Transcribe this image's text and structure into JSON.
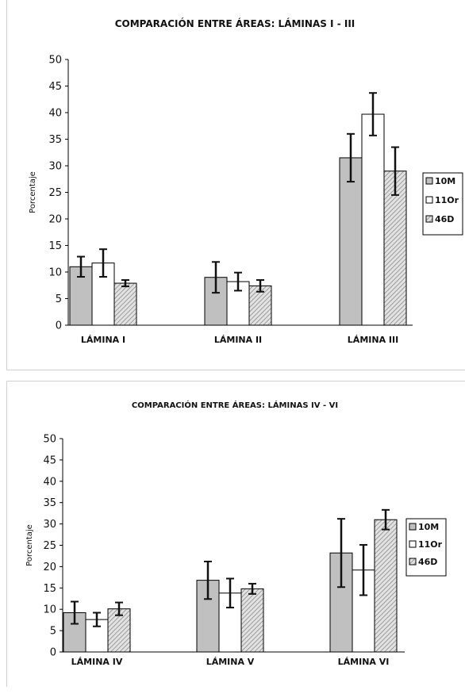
{
  "chart_data": [
    {
      "type": "bar",
      "title": "COMPARACIÓN ENTRE ÁREAS: LÁMINAS I - III",
      "ylabel": "Porcentaje",
      "xlabel": "",
      "ylim": [
        0,
        50
      ],
      "yticks": [
        0,
        5,
        10,
        15,
        20,
        25,
        30,
        35,
        40,
        45,
        50
      ],
      "grid": false,
      "legend": "right",
      "categories": [
        "LÁMINA I",
        "LÁMINA II",
        "LÁMINA III"
      ],
      "series": [
        {
          "name": "10M",
          "fill": "#c0c0c0",
          "values": [
            11.0,
            9.0,
            31.5
          ],
          "errors": [
            1.9,
            2.9,
            4.5
          ]
        },
        {
          "name": "11Or",
          "fill": "#ffffff",
          "values": [
            11.7,
            8.2,
            39.7
          ],
          "errors": [
            2.6,
            1.7,
            4.0
          ]
        },
        {
          "name": "46D",
          "fill": "hatch",
          "values": [
            7.9,
            7.4,
            29.0
          ],
          "errors": [
            0.6,
            1.1,
            4.5
          ]
        }
      ]
    },
    {
      "type": "bar",
      "title": "COMPARACIÓN ENTRE ÁREAS: LÁMINAS IV - VI",
      "ylabel": "Porcentaje",
      "xlabel": "",
      "ylim": [
        0,
        50
      ],
      "yticks": [
        0,
        5,
        10,
        15,
        20,
        25,
        30,
        35,
        40,
        45,
        50
      ],
      "grid": false,
      "legend": "right",
      "categories": [
        "LÁMINA IV",
        "LÁMINA V",
        "LÁMINA VI"
      ],
      "series": [
        {
          "name": "10M",
          "fill": "#c0c0c0",
          "values": [
            9.2,
            16.8,
            23.2
          ],
          "errors": [
            2.6,
            4.4,
            8.0
          ]
        },
        {
          "name": "11Or",
          "fill": "#ffffff",
          "values": [
            7.6,
            13.8,
            19.2
          ],
          "errors": [
            1.6,
            3.4,
            5.9
          ]
        },
        {
          "name": "46D",
          "fill": "hatch",
          "values": [
            10.1,
            14.8,
            31.0
          ],
          "errors": [
            1.5,
            1.2,
            2.3
          ]
        }
      ]
    }
  ]
}
